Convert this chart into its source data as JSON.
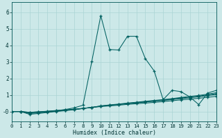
{
  "xlabel": "Humidex (Indice chaleur)",
  "bg_color": "#cce8e8",
  "line_color": "#006060",
  "grid_color": "#aad4d4",
  "xlim": [
    0,
    23
  ],
  "ylim": [
    -0.6,
    6.6
  ],
  "xticks": [
    0,
    1,
    2,
    3,
    4,
    5,
    6,
    7,
    8,
    9,
    10,
    11,
    12,
    13,
    14,
    15,
    16,
    17,
    18,
    19,
    20,
    21,
    22,
    23
  ],
  "yticks": [
    0,
    1,
    2,
    3,
    4,
    5,
    6
  ],
  "series": [
    {
      "x": [
        0,
        1,
        2,
        3,
        4,
        5,
        6,
        7,
        8,
        9,
        10,
        11,
        12,
        13,
        14,
        15,
        16,
        17,
        18,
        19,
        20,
        21,
        22,
        23
      ],
      "y": [
        0.0,
        0.0,
        -0.05,
        -0.02,
        0.02,
        0.06,
        0.1,
        0.14,
        0.19,
        0.24,
        0.3,
        0.34,
        0.38,
        0.43,
        0.47,
        0.51,
        0.55,
        0.6,
        0.65,
        0.7,
        0.75,
        0.8,
        0.86,
        0.92
      ]
    },
    {
      "x": [
        0,
        1,
        2,
        3,
        4,
        5,
        6,
        7,
        8,
        9,
        10,
        11,
        12,
        13,
        14,
        15,
        16,
        17,
        18,
        19,
        20,
        21,
        22,
        23
      ],
      "y": [
        0.0,
        0.0,
        -0.08,
        -0.05,
        0.0,
        0.04,
        0.08,
        0.13,
        0.19,
        0.25,
        0.32,
        0.37,
        0.42,
        0.47,
        0.52,
        0.57,
        0.62,
        0.67,
        0.72,
        0.78,
        0.83,
        0.89,
        0.96,
        1.03
      ]
    },
    {
      "x": [
        0,
        1,
        2,
        3,
        4,
        5,
        6,
        7,
        8,
        9,
        10,
        11,
        12,
        13,
        14,
        15,
        16,
        17,
        18,
        19,
        20,
        21,
        22,
        23
      ],
      "y": [
        0.0,
        0.0,
        -0.12,
        -0.08,
        -0.03,
        0.02,
        0.07,
        0.12,
        0.18,
        0.25,
        0.33,
        0.38,
        0.43,
        0.49,
        0.54,
        0.59,
        0.64,
        0.69,
        0.75,
        0.81,
        0.87,
        0.93,
        1.0,
        1.08
      ]
    },
    {
      "x": [
        0,
        1,
        2,
        3,
        4,
        5,
        6,
        7,
        8,
        9,
        10,
        11,
        12,
        13,
        14,
        15,
        16,
        17,
        18,
        19,
        20,
        21,
        22,
        23
      ],
      "y": [
        0.0,
        0.0,
        -0.17,
        -0.12,
        -0.06,
        0.0,
        0.05,
        0.11,
        0.18,
        0.25,
        0.34,
        0.4,
        0.45,
        0.51,
        0.56,
        0.62,
        0.67,
        0.72,
        0.78,
        0.85,
        0.91,
        0.97,
        1.05,
        1.14
      ]
    },
    {
      "x": [
        0,
        1,
        2,
        3,
        4,
        5,
        6,
        7,
        8,
        9,
        10,
        11,
        12,
        13,
        14,
        15,
        16,
        17,
        18,
        19,
        20,
        21,
        22,
        23
      ],
      "y": [
        0.0,
        0.0,
        -0.05,
        -0.02,
        0.0,
        0.05,
        0.12,
        0.22,
        0.38,
        3.05,
        5.8,
        3.75,
        3.72,
        4.55,
        4.55,
        3.2,
        2.45,
        0.72,
        1.28,
        1.2,
        0.88,
        0.42,
        1.12,
        1.28
      ]
    }
  ]
}
